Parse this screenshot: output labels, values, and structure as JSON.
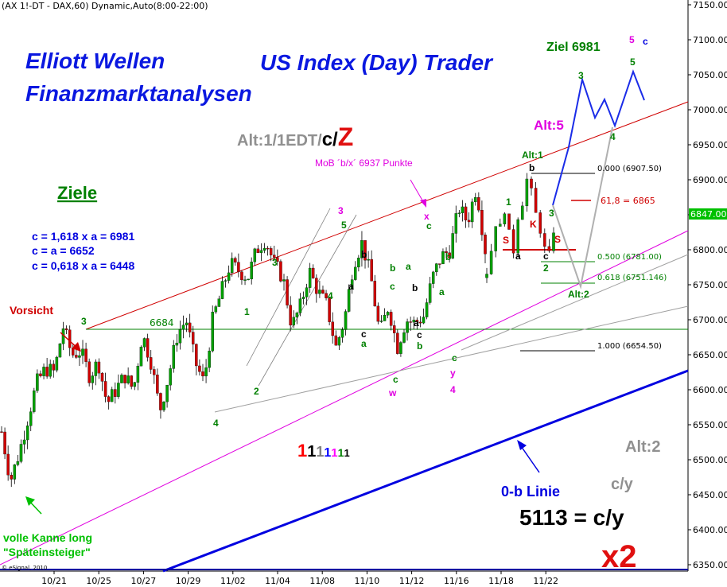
{
  "header": "(AX 1!-DT - DAX,60) Dynamic,Auto(8:00-22:00)",
  "copyright": "© eSignal, 2010",
  "titles": {
    "line1": "Elliott Wellen",
    "line2": "Finanzmarktanalysen",
    "line3": "US Index (Day) Trader"
  },
  "alt_label": {
    "prefix": "Alt:1/1EDT/",
    "c": "c/",
    "z": "Z"
  },
  "ziele": {
    "heading": "Ziele",
    "lines": [
      "c = 1,618 x a = 6981",
      "c = a = 6652",
      "c = 0,618 x a = 6448"
    ]
  },
  "annotations": {
    "vorsicht": "Vorsicht",
    "volle_kanne_1": "volle Kanne long",
    "volle_kanne_2": "\"Späteinsteiger\"",
    "mob": "MoB ´b/x´ 6937 Punkte",
    "ziel": "Ziel 6981",
    "alt5": "Alt:5",
    "alt1_small": "Alt:1",
    "alt2_small": "Alt:2",
    "alt2_big": "Alt:2",
    "null_b": "0-b Linie",
    "c_y_gray": "c/y",
    "c_y_big": "5113 = c/y",
    "x2": "x2",
    "level_6684": "6684",
    "fib_618_6865": "61,8 = 6865"
  },
  "fib_levels": [
    {
      "label": "0.000 (6907.50)",
      "value": 6907.5
    },
    {
      "label": "0.500 (6781.00)",
      "value": 6781.0
    },
    {
      "label": "0.618 (6751.146)",
      "value": 6751.146
    },
    {
      "label": "1.000 (6654.50)",
      "value": 6654.5
    }
  ],
  "ones_sequence": [
    {
      "text": "1",
      "color": "#ff0000"
    },
    {
      "text": "1",
      "color": "#000000"
    },
    {
      "text": "1",
      "color": "#808080"
    },
    {
      "text": "1",
      "color": "#0000ff"
    },
    {
      "text": "1",
      "color": "#ff00ff"
    },
    {
      "text": "1",
      "color": "#008000"
    },
    {
      "text": "1",
      "color": "#000000"
    }
  ],
  "colors": {
    "candle_up": "#00a000",
    "candle_down": "#d00000",
    "wick": "#000000",
    "red_line": "#d00000",
    "magenta_line": "#e000e0",
    "blue_line": "#0000e0",
    "green_line": "#008000",
    "gray_line": "#a0a0a0",
    "last_price_bg": "#00c000"
  },
  "chart_data": {
    "type": "candlestick",
    "title": "(AX 1!-DT - DAX,60) Dynamic,Auto(8:00-22:00)",
    "x_ticks": [
      "10/21",
      "10/25",
      "10/27",
      "10/29",
      "11/02",
      "11/04",
      "11/08",
      "11/10",
      "11/12",
      "11/16",
      "11/18",
      "11/22"
    ],
    "y_ticks": [
      6350,
      6400,
      6450,
      6500,
      6550,
      6600,
      6650,
      6700,
      6750,
      6800,
      6850,
      6900,
      6950,
      7000,
      7050,
      7100,
      7150
    ],
    "ylim": [
      6340,
      7160
    ],
    "last_price": "6847.00",
    "price_path": [
      6540,
      6470,
      6510,
      6560,
      6610,
      6630,
      6625,
      6690,
      6650,
      6655,
      6620,
      6640,
      6580,
      6600,
      6620,
      6600,
      6680,
      6640,
      6570,
      6620,
      6680,
      6700,
      6640,
      6610,
      6700,
      6740,
      6780,
      6770,
      6760,
      6800,
      6815,
      6780,
      6760,
      6690,
      6720,
      6770,
      6740,
      6720,
      6660,
      6700,
      6780,
      6810,
      6760,
      6680,
      6720,
      6660,
      6700,
      6695,
      6705,
      6760,
      6790,
      6800,
      6860,
      6840,
      6890,
      6800
    ]
  }
}
